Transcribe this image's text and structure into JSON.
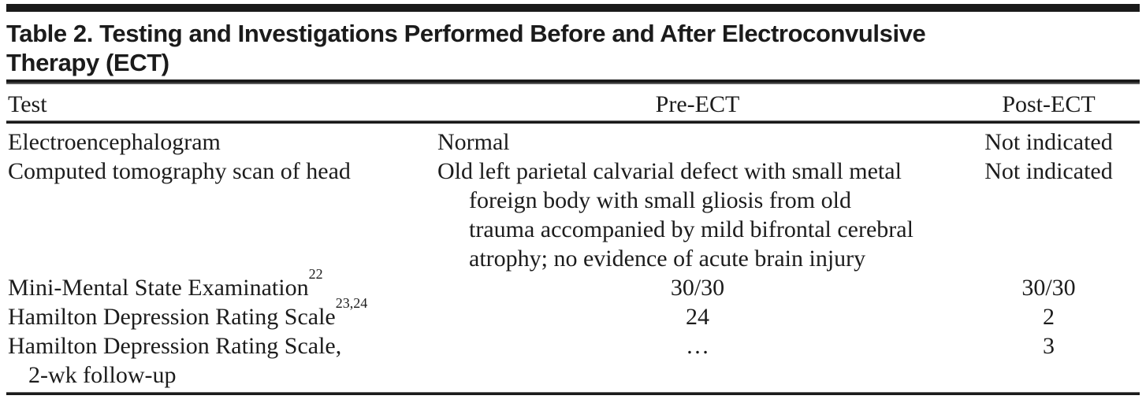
{
  "title": {
    "line1": "Table 2. Testing and Investigations Performed Before and After Electroconvulsive",
    "line2": "Therapy (ECT)"
  },
  "columns": {
    "test": "Test",
    "pre": "Pre-ECT",
    "post": "Post-ECT"
  },
  "rows": [
    {
      "test": "Electroencephalogram",
      "sup": "",
      "pre": "Normal",
      "post": "Not indicated"
    },
    {
      "test": "Computed tomography scan of head",
      "sup": "",
      "pre": [
        "Old left parietal calvarial defect with small metal",
        "foreign body with small gliosis from old",
        "trauma accompanied by mild bifrontal cerebral",
        "atrophy; no evidence of acute brain injury"
      ],
      "post": "Not indicated"
    },
    {
      "test": "Mini-Mental State Examination",
      "sup": "22",
      "pre": "30/30",
      "post": "30/30"
    },
    {
      "test": "Hamilton Depression Rating Scale",
      "sup": "23,24",
      "pre": "24",
      "post": "2"
    },
    {
      "test": [
        "Hamilton Depression Rating Scale,",
        "2-wk follow-up"
      ],
      "sup": "",
      "pre": "…",
      "post": "3"
    }
  ],
  "colors": {
    "text": "#1c1c1c",
    "rule_dark": "#1b1b1b",
    "rule_light": "#5a5a5a",
    "background": "#ffffff"
  }
}
